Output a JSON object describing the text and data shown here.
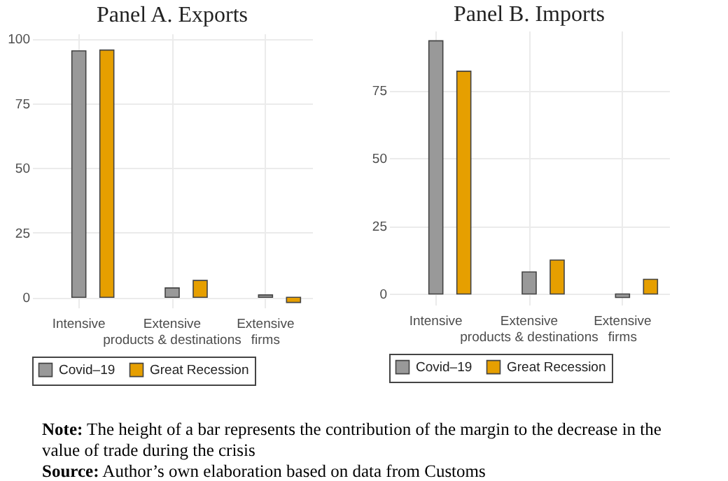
{
  "chart_data": [
    {
      "type": "bar",
      "title": "Panel A. Exports",
      "categories": [
        "Intensive",
        "Extensive\nproducts & destinations",
        "Extensive\nfirms"
      ],
      "series": [
        {
          "name": "Covid–19",
          "color": "#999999",
          "values": [
            95.3,
            3.6,
            0.9
          ]
        },
        {
          "name": "Great Recession",
          "color": "#e69f00",
          "values": [
            95.6,
            6.5,
            -2.0
          ]
        }
      ],
      "ylim": [
        -4,
        102
      ],
      "yticks": [
        0,
        25,
        50,
        75,
        100
      ],
      "grid": true,
      "legend": "bottom"
    },
    {
      "type": "bar",
      "title": "Panel B. Imports",
      "categories": [
        "Intensive",
        "Extensive\nproducts & destinations",
        "Extensive\nfirms"
      ],
      "series": [
        {
          "name": "Covid–19",
          "color": "#999999",
          "values": [
            93.3,
            8.1,
            -1.3
          ]
        },
        {
          "name": "Great Recession",
          "color": "#e69f00",
          "values": [
            82.1,
            12.5,
            5.4
          ]
        }
      ],
      "ylim": [
        -4,
        97
      ],
      "yticks": [
        0,
        25,
        50,
        75
      ],
      "grid": true,
      "legend": "bottom",
      "annotations": [
        "Note: The height of a bar represents the contribution of the margin to the decrease in the value of trade during the crisis",
        "Source: Author’s own elaboration based on data from Customs"
      ]
    }
  ]
}
